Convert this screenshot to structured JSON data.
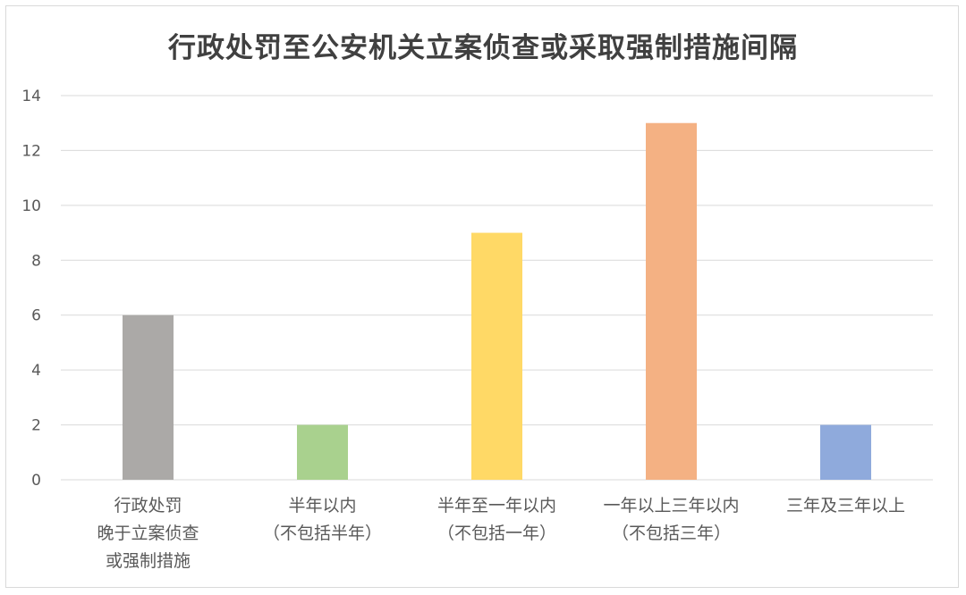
{
  "chart_data": {
    "type": "bar",
    "title": "行政处罚至公安机关立案侦查或采取强制措施间隔",
    "categories": [
      [
        "行政处罚",
        "晚于立案侦查",
        "或强制措施"
      ],
      [
        "半年以内",
        "（不包括半年）"
      ],
      [
        "半年至一年以内",
        "（不包括一年）"
      ],
      [
        "一年以上三年以内",
        "（不包括三年）"
      ],
      [
        "三年及三年以上"
      ]
    ],
    "values": [
      6,
      2,
      9,
      13,
      2
    ],
    "colors": [
      "#aba9a7",
      "#a9d18e",
      "#ffd966",
      "#f4b183",
      "#8faadc"
    ],
    "ylim": [
      0,
      14
    ],
    "yticks": [
      "0",
      "2",
      "4",
      "6",
      "8",
      "10",
      "12",
      "14"
    ],
    "grid": true,
    "legend": "none",
    "xlabel": "",
    "ylabel": ""
  }
}
